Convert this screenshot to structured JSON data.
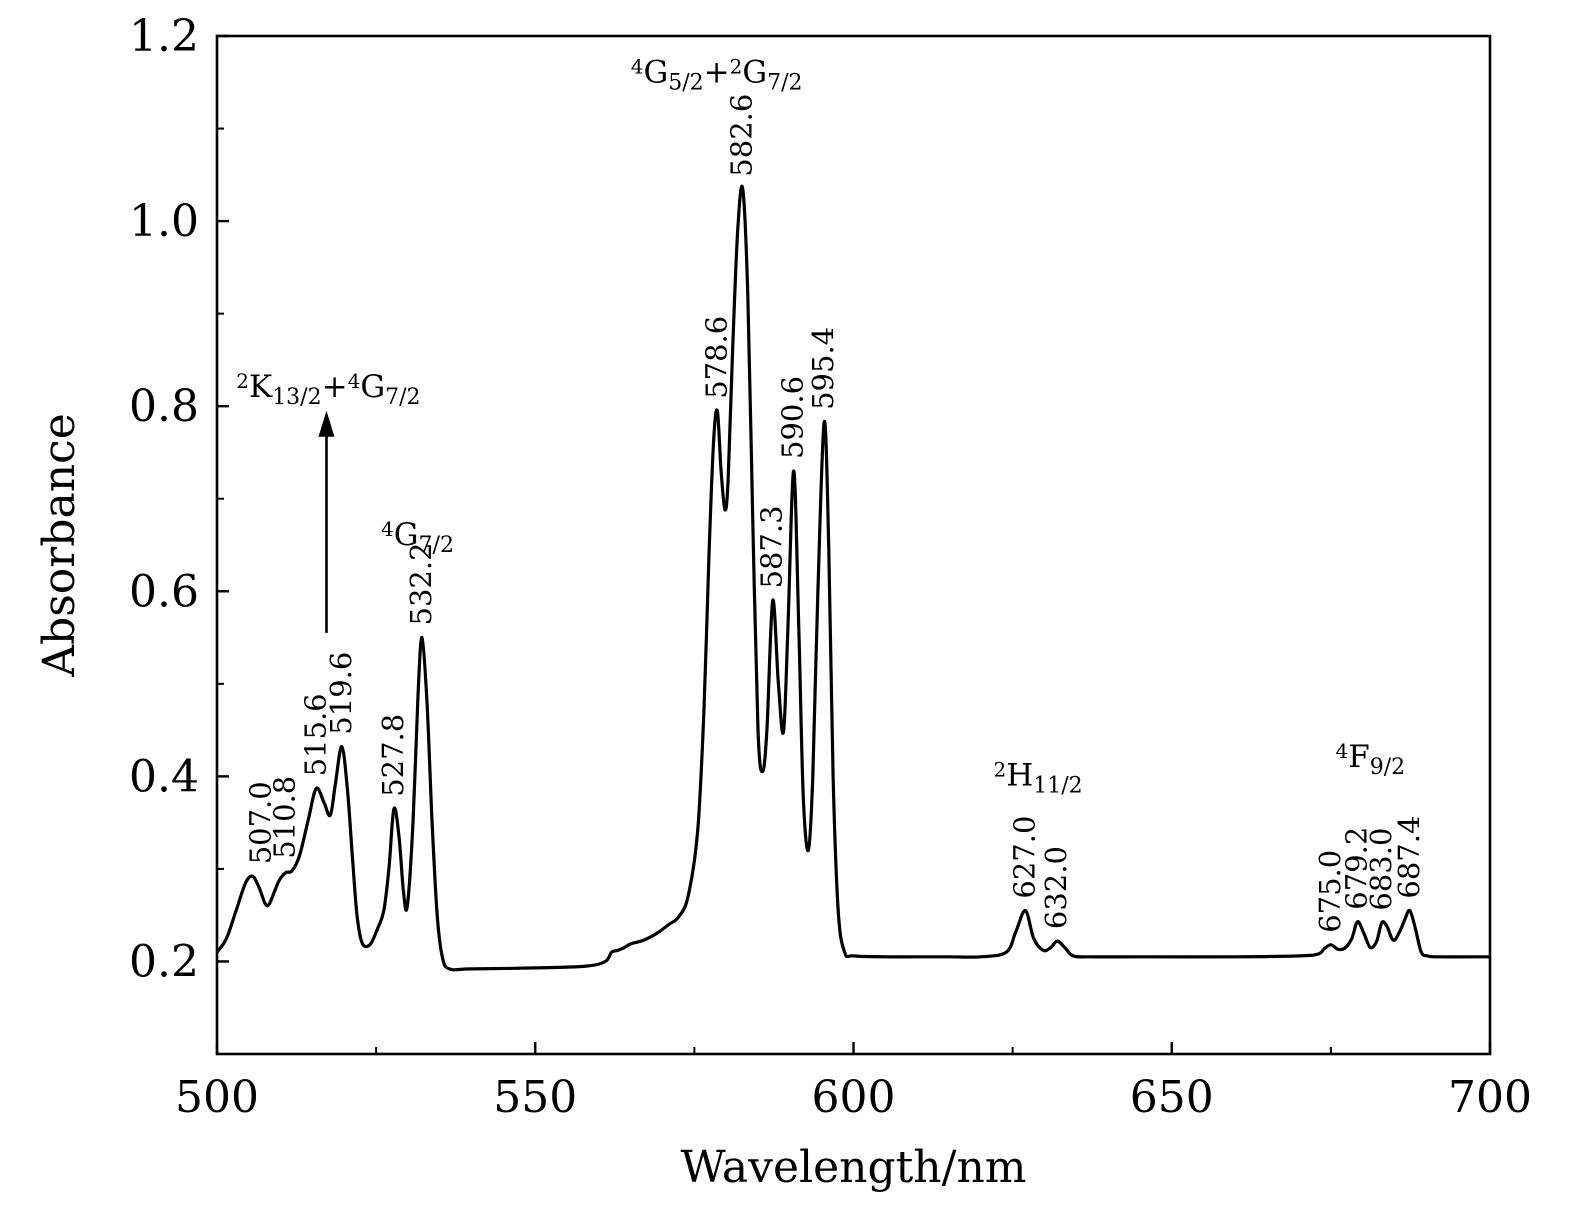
{
  "chart_data": {
    "type": "line",
    "title": "",
    "xlabel": "Wavelength/nm",
    "ylabel": "Absorbance",
    "xlim": [
      500,
      700
    ],
    "ylim": [
      0.1,
      1.2
    ],
    "xticks": [
      500,
      550,
      600,
      650,
      700
    ],
    "xtick_labels": [
      "500",
      "550",
      "600",
      "650",
      "700"
    ],
    "yticks": [
      0.2,
      0.4,
      0.6,
      0.8,
      1.0,
      1.2
    ],
    "ytick_labels": [
      "0.2",
      "0.4",
      "0.6",
      "0.8",
      "1.0",
      "1.2"
    ],
    "grid": false,
    "series": [
      {
        "name": "Absorbance",
        "x": [
          500.0,
          501.5,
          503.0,
          504.5,
          505.6,
          506.6,
          507.6,
          508.2,
          509.0,
          509.8,
          510.8,
          511.8,
          513.0,
          514.4,
          515.6,
          516.8,
          517.8,
          518.6,
          519.6,
          520.5,
          521.3,
          522.0,
          522.8,
          524.0,
          525.2,
          526.2,
          527.0,
          527.8,
          528.6,
          529.3,
          529.9,
          530.8,
          531.6,
          532.2,
          533.0,
          533.8,
          534.6,
          535.4,
          536.5,
          540.0,
          550.0,
          558.0,
          561.0,
          562.0,
          563.0,
          564.0,
          565.0,
          567.0,
          569.0,
          571.0,
          572.5,
          574.0,
          575.5,
          576.5,
          577.3,
          578.0,
          578.6,
          579.2,
          579.8,
          580.3,
          581.0,
          581.8,
          582.6,
          583.4,
          584.2,
          585.0,
          585.7,
          586.4,
          587.3,
          588.2,
          589.0,
          589.7,
          590.6,
          591.4,
          592.1,
          592.9,
          593.6,
          594.4,
          595.4,
          596.1,
          596.8,
          597.6,
          598.6,
          600.0,
          605.0,
          610.0,
          615.0,
          620.0,
          624.0,
          625.5,
          627.0,
          628.3,
          629.8,
          631.0,
          632.0,
          633.2,
          634.5,
          637.0,
          645.0,
          660.0,
          670.0,
          673.0,
          674.0,
          675.0,
          676.2,
          677.3,
          678.3,
          679.2,
          680.2,
          681.2,
          682.2,
          683.0,
          683.8,
          684.8,
          685.8,
          686.6,
          687.4,
          688.3,
          689.2,
          690.2,
          692.0,
          700.0
        ],
        "y": [
          0.21,
          0.225,
          0.255,
          0.285,
          0.292,
          0.28,
          0.262,
          0.262,
          0.275,
          0.288,
          0.296,
          0.298,
          0.315,
          0.355,
          0.387,
          0.372,
          0.358,
          0.392,
          0.432,
          0.385,
          0.31,
          0.25,
          0.22,
          0.218,
          0.235,
          0.255,
          0.3,
          0.365,
          0.335,
          0.275,
          0.26,
          0.35,
          0.49,
          0.55,
          0.48,
          0.35,
          0.25,
          0.205,
          0.192,
          0.192,
          0.193,
          0.195,
          0.2,
          0.21,
          0.212,
          0.215,
          0.219,
          0.223,
          0.23,
          0.24,
          0.248,
          0.27,
          0.34,
          0.47,
          0.64,
          0.76,
          0.795,
          0.73,
          0.688,
          0.72,
          0.86,
          0.99,
          1.035,
          0.92,
          0.67,
          0.45,
          0.405,
          0.45,
          0.59,
          0.5,
          0.448,
          0.56,
          0.73,
          0.56,
          0.38,
          0.32,
          0.4,
          0.6,
          0.783,
          0.65,
          0.4,
          0.255,
          0.21,
          0.206,
          0.205,
          0.205,
          0.205,
          0.205,
          0.21,
          0.232,
          0.255,
          0.225,
          0.212,
          0.215,
          0.222,
          0.215,
          0.206,
          0.205,
          0.205,
          0.205,
          0.206,
          0.208,
          0.214,
          0.218,
          0.213,
          0.215,
          0.225,
          0.243,
          0.23,
          0.215,
          0.222,
          0.242,
          0.238,
          0.223,
          0.232,
          0.245,
          0.255,
          0.235,
          0.21,
          0.206,
          0.205,
          0.205
        ]
      }
    ],
    "peak_labels": [
      {
        "text": "507.0",
        "x": 507.0,
        "y": 0.292
      },
      {
        "text": "510.8",
        "x": 510.8,
        "y": 0.298
      },
      {
        "text": "515.6",
        "x": 515.6,
        "y": 0.387
      },
      {
        "text": "519.6",
        "x": 519.6,
        "y": 0.432
      },
      {
        "text": "527.8",
        "x": 527.8,
        "y": 0.365
      },
      {
        "text": "532.2",
        "x": 532.2,
        "y": 0.55
      },
      {
        "text": "578.6",
        "x": 578.6,
        "y": 0.795
      },
      {
        "text": "582.6",
        "x": 582.6,
        "y": 1.035
      },
      {
        "text": "587.3",
        "x": 587.3,
        "y": 0.59
      },
      {
        "text": "590.6",
        "x": 590.6,
        "y": 0.73
      },
      {
        "text": "595.4",
        "x": 595.4,
        "y": 0.783
      },
      {
        "text": "627.0",
        "x": 627.0,
        "y": 0.255
      },
      {
        "text": "632.0",
        "x": 632.0,
        "y": 0.222
      },
      {
        "text": "675.0",
        "x": 675.0,
        "y": 0.218
      },
      {
        "text": "679.2",
        "x": 679.2,
        "y": 0.243
      },
      {
        "text": "683.0",
        "x": 683.0,
        "y": 0.242
      },
      {
        "text": "687.4",
        "x": 687.4,
        "y": 0.255
      }
    ],
    "band_labels": [
      {
        "id": "band-2k13-4g7",
        "parts": [
          {
            "t": "2",
            "s": "sup"
          },
          {
            "t": "K",
            "s": ""
          },
          {
            "t": "13/2",
            "s": "sub"
          },
          {
            "t": "+",
            "s": ""
          },
          {
            "t": "4",
            "s": "sup"
          },
          {
            "t": "G",
            "s": ""
          },
          {
            "t": "7/2",
            "s": "sub"
          }
        ],
        "x": 517.5,
        "y": 0.81
      },
      {
        "id": "band-4g7",
        "parts": [
          {
            "t": "4",
            "s": "sup"
          },
          {
            "t": "G",
            "s": ""
          },
          {
            "t": "7/2",
            "s": "sub"
          }
        ],
        "x": 531.5,
        "y": 0.65
      },
      {
        "id": "band-4g5-2g7",
        "parts": [
          {
            "t": "4",
            "s": "sup"
          },
          {
            "t": "G",
            "s": ""
          },
          {
            "t": "5/2",
            "s": "sub"
          },
          {
            "t": "+",
            "s": ""
          },
          {
            "t": "2",
            "s": "sup"
          },
          {
            "t": "G",
            "s": ""
          },
          {
            "t": "7/2",
            "s": "sub"
          }
        ],
        "x": 578.5,
        "y": 1.15
      },
      {
        "id": "band-2h11",
        "parts": [
          {
            "t": "2",
            "s": "sup"
          },
          {
            "t": "H",
            "s": ""
          },
          {
            "t": "11/2",
            "s": "sub"
          }
        ],
        "x": 629.0,
        "y": 0.39
      },
      {
        "id": "band-4f9",
        "parts": [
          {
            "t": "4",
            "s": "sup"
          },
          {
            "t": "F",
            "s": ""
          },
          {
            "t": "9/2",
            "s": "sub"
          }
        ],
        "x": 681.2,
        "y": 0.41
      }
    ],
    "arrow": {
      "x": 517.2,
      "y_from": 0.555,
      "y_to": 0.795
    }
  }
}
